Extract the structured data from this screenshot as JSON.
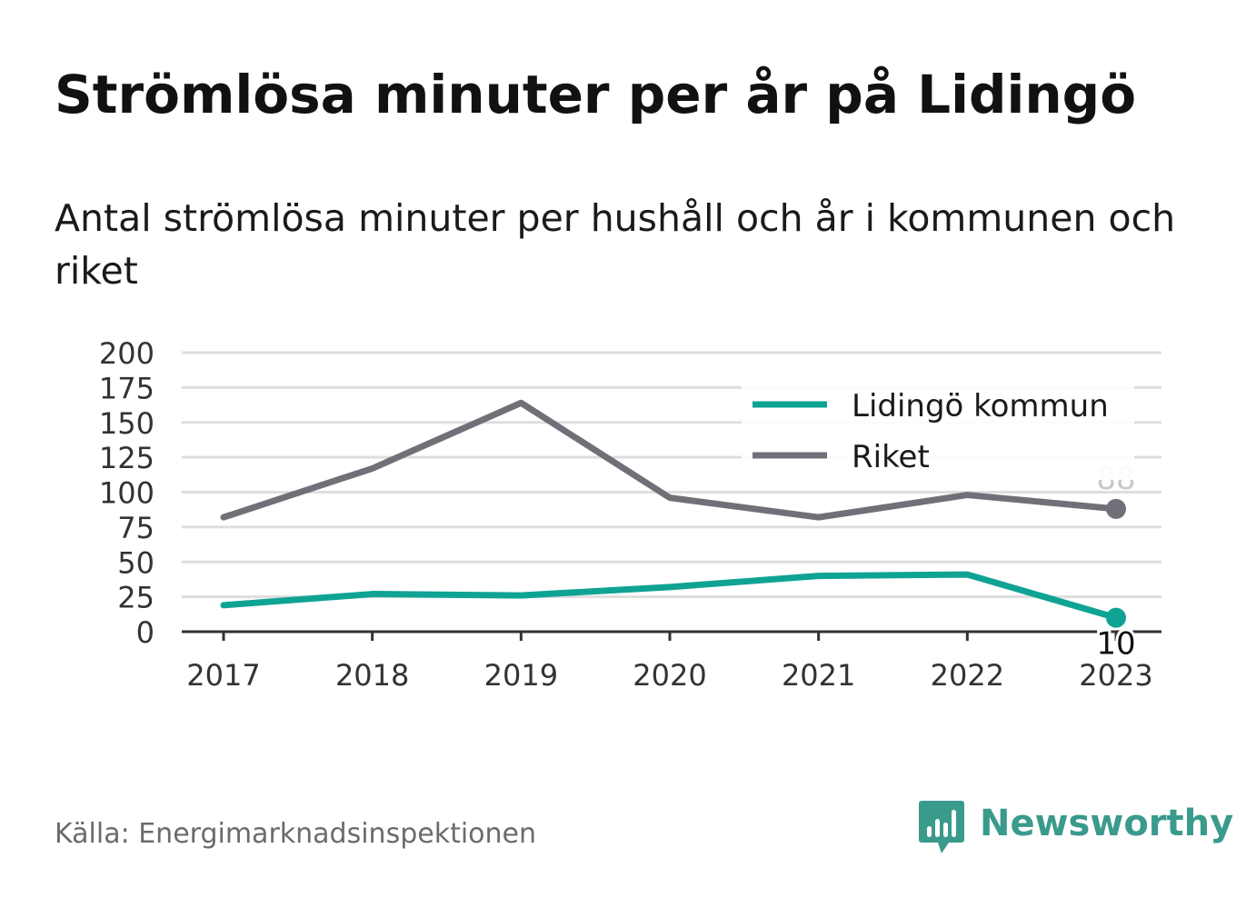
{
  "title": "Strömlösa minuter per år på Lidingö",
  "subtitle": "Antal strömlösa minuter per hushåll och år i kommunen och riket",
  "source": "Källa: Energimarknadsinspektionen",
  "brand": {
    "name": "Newsworthy",
    "icon": "newsworthy-logo-icon",
    "color": "#3a9a8c"
  },
  "chart_data": {
    "type": "line",
    "x": [
      "2017",
      "2018",
      "2019",
      "2020",
      "2021",
      "2022",
      "2023"
    ],
    "ylim": [
      0,
      200
    ],
    "yticks": [
      0,
      25,
      50,
      75,
      100,
      125,
      150,
      175,
      200
    ],
    "grid": true,
    "legend_position": "top-right",
    "series": [
      {
        "name": "Lidingö kommun",
        "color": "#0fa394",
        "values": [
          19,
          27,
          26,
          32,
          40,
          41,
          10
        ],
        "end_label": "10"
      },
      {
        "name": "Riket",
        "color": "#707078",
        "values": [
          82,
          117,
          164,
          96,
          82,
          98,
          88
        ],
        "end_label": "88"
      }
    ]
  }
}
